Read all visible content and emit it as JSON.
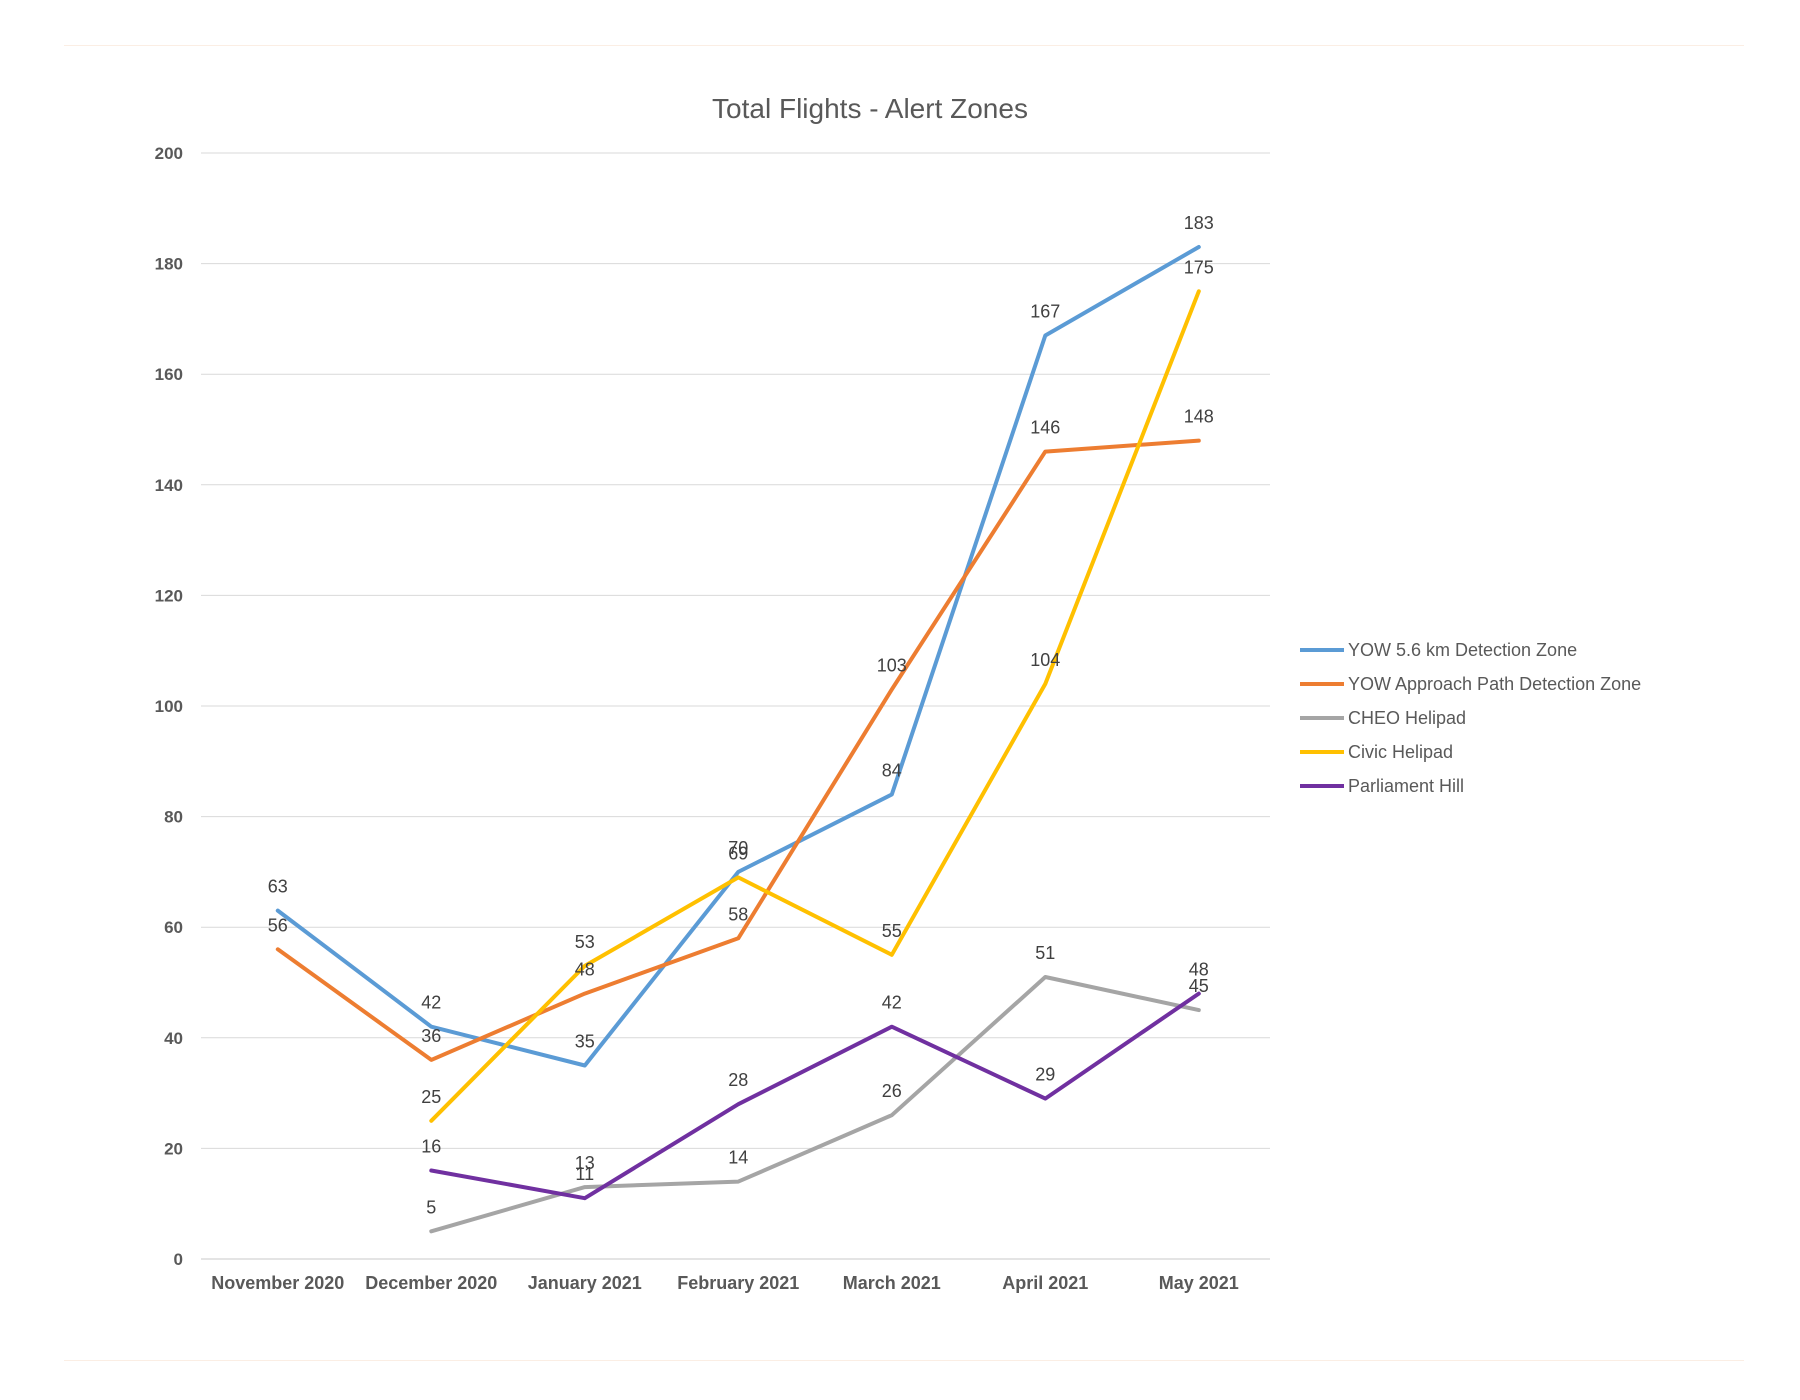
{
  "chart_data": {
    "type": "line",
    "title": "Total Flights - Alert Zones",
    "xlabel": "",
    "ylabel": "",
    "ylim": [
      0,
      200
    ],
    "yticks": [
      0,
      20,
      40,
      60,
      80,
      100,
      120,
      140,
      160,
      180,
      200
    ],
    "grid": true,
    "legend_position": "right",
    "categories": [
      "November 2020",
      "December 2020",
      "January 2021",
      "February 2021",
      "March 2021",
      "April 2021",
      "May 2021"
    ],
    "series": [
      {
        "name": "YOW 5.6 km Detection Zone",
        "color": "#5b9bd5",
        "values": [
          63,
          42,
          35,
          70,
          84,
          167,
          183
        ]
      },
      {
        "name": "YOW Approach Path Detection Zone",
        "color": "#ed7d31",
        "values": [
          56,
          36,
          48,
          58,
          103,
          146,
          148
        ]
      },
      {
        "name": "CHEO Helipad",
        "color": "#a5a5a5",
        "values": [
          null,
          5,
          13,
          14,
          26,
          51,
          45
        ]
      },
      {
        "name": "Civic Helipad",
        "color": "#ffc000",
        "values": [
          null,
          25,
          53,
          69,
          55,
          104,
          175
        ]
      },
      {
        "name": "Parliament Hill",
        "color": "#7030a0",
        "values": [
          null,
          16,
          11,
          28,
          42,
          29,
          48
        ]
      }
    ]
  }
}
